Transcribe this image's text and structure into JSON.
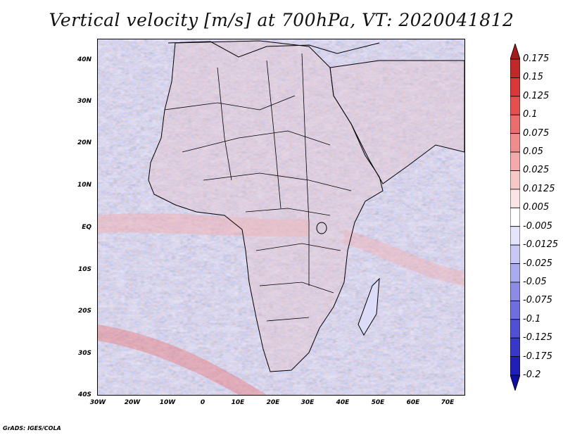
{
  "title": "Vertical velocity [m/s] at 700hPa, VT: 2020041812",
  "credit": "GrADS: IGES/COLA",
  "lat_ticks": [
    "40N",
    "30N",
    "20N",
    "10N",
    "EQ",
    "10S",
    "20S",
    "30S",
    "40S"
  ],
  "lon_ticks": [
    "30W",
    "20W",
    "10W",
    "0",
    "10E",
    "20E",
    "30E",
    "40E",
    "50E",
    "60E",
    "70E"
  ],
  "colorbar": {
    "labels": [
      "0.175",
      "0.15",
      "0.125",
      "0.1",
      "0.075",
      "0.05",
      "0.025",
      "0.0125",
      "0.005",
      "-0.005",
      "-0.0125",
      "-0.025",
      "-0.05",
      "-0.075",
      "-0.1",
      "-0.125",
      "-0.175",
      "-0.2"
    ],
    "colors": [
      "#a51a1a",
      "#c12828",
      "#d93838",
      "#e45050",
      "#ea6e6e",
      "#ef8c8c",
      "#f4aaaa",
      "#f8c8c8",
      "#fce4e4",
      "#ffffff",
      "#e4e4fc",
      "#c8c8f6",
      "#aaaaee",
      "#8c8ce6",
      "#6e6ede",
      "#5050d4",
      "#3838c8",
      "#2020b8",
      "#1010a0"
    ]
  },
  "colors": {
    "land_outline": "#000000",
    "background_field": "#dcdcf8"
  }
}
